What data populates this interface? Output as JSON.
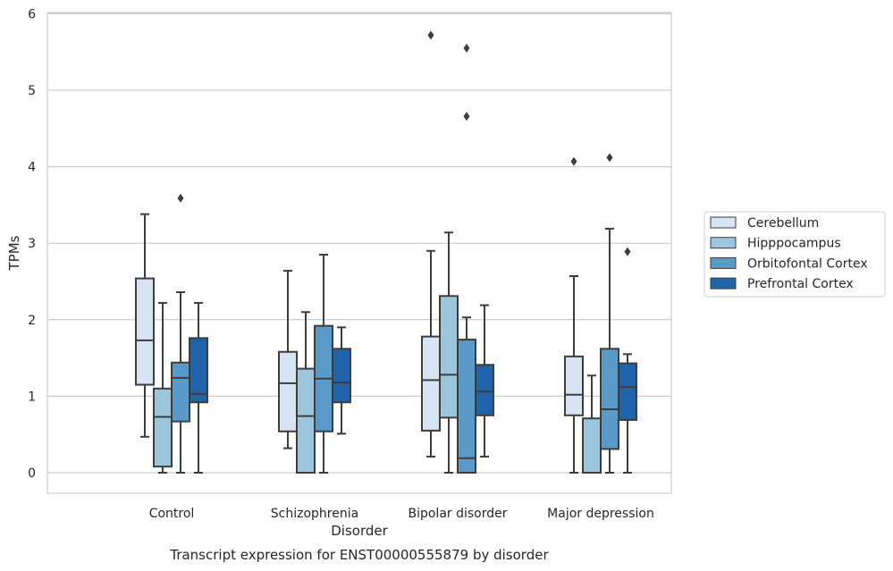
{
  "chart_data": {
    "type": "box",
    "caption": "Transcript expression for ENST00000555879 by disorder",
    "xlabel": "Disorder",
    "ylabel": "TPMs",
    "ylim": [
      -0.27,
      6.02
    ],
    "yticks": [
      0,
      1,
      2,
      3,
      4,
      5,
      6
    ],
    "grid": true,
    "legend_position": "center-right outside",
    "categories": [
      "Control",
      "Schizophrenia",
      "Bipolar disorder",
      "Major depression"
    ],
    "series": [
      {
        "name": "Cerebellum",
        "color": "#d6e4f3",
        "boxes": [
          {
            "whisker_low": 0.47,
            "q1": 1.15,
            "median": 1.73,
            "q3": 2.54,
            "whisker_high": 3.38,
            "outliers": []
          },
          {
            "whisker_low": 0.32,
            "q1": 0.54,
            "median": 1.17,
            "q3": 1.58,
            "whisker_high": 2.64,
            "outliers": []
          },
          {
            "whisker_low": 0.21,
            "q1": 0.55,
            "median": 1.21,
            "q3": 1.78,
            "whisker_high": 2.9,
            "outliers": [
              5.72
            ]
          },
          {
            "whisker_low": 0.0,
            "q1": 0.75,
            "median": 1.02,
            "q3": 1.52,
            "whisker_high": 2.57,
            "outliers": [
              4.07
            ]
          }
        ]
      },
      {
        "name": "Hipppocampus",
        "color": "#9cc5de",
        "boxes": [
          {
            "whisker_low": 0.0,
            "q1": 0.08,
            "median": 0.73,
            "q3": 1.1,
            "whisker_high": 2.22,
            "outliers": []
          },
          {
            "whisker_low": 0.0,
            "q1": 0.0,
            "median": 0.74,
            "q3": 1.36,
            "whisker_high": 2.1,
            "outliers": []
          },
          {
            "whisker_low": 0.0,
            "q1": 0.72,
            "median": 1.28,
            "q3": 2.31,
            "whisker_high": 3.14,
            "outliers": []
          },
          {
            "whisker_low": 0.0,
            "q1": 0.0,
            "median": 0.0,
            "q3": 0.71,
            "whisker_high": 1.27,
            "outliers": []
          }
        ]
      },
      {
        "name": "Orbitofontal Cortex",
        "color": "#5a9ac8",
        "boxes": [
          {
            "whisker_low": 0.0,
            "q1": 0.67,
            "median": 1.24,
            "q3": 1.44,
            "whisker_high": 2.36,
            "outliers": [
              3.59
            ]
          },
          {
            "whisker_low": 0.0,
            "q1": 0.54,
            "median": 1.23,
            "q3": 1.92,
            "whisker_high": 2.85,
            "outliers": []
          },
          {
            "whisker_low": 0.0,
            "q1": 0.0,
            "median": 0.19,
            "q3": 1.74,
            "whisker_high": 2.03,
            "outliers": [
              4.66,
              5.55
            ]
          },
          {
            "whisker_low": 0.0,
            "q1": 0.31,
            "median": 0.83,
            "q3": 1.62,
            "whisker_high": 3.19,
            "outliers": [
              4.12
            ]
          }
        ]
      },
      {
        "name": "Prefrontal Cortex",
        "color": "#2163a9",
        "boxes": [
          {
            "whisker_low": 0.0,
            "q1": 0.92,
            "median": 1.03,
            "q3": 1.76,
            "whisker_high": 2.22,
            "outliers": []
          },
          {
            "whisker_low": 0.51,
            "q1": 0.92,
            "median": 1.18,
            "q3": 1.62,
            "whisker_high": 1.9,
            "outliers": []
          },
          {
            "whisker_low": 0.21,
            "q1": 0.75,
            "median": 1.06,
            "q3": 1.41,
            "whisker_high": 2.19,
            "outliers": []
          },
          {
            "whisker_low": 0.0,
            "q1": 0.69,
            "median": 1.12,
            "q3": 1.43,
            "whisker_high": 1.55,
            "outliers": [
              2.89
            ]
          }
        ]
      }
    ]
  }
}
